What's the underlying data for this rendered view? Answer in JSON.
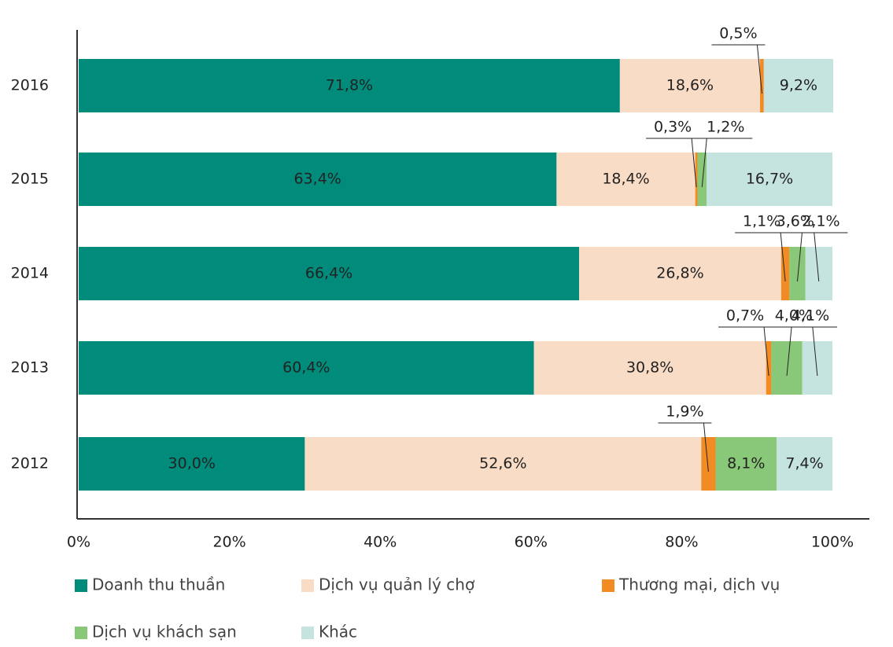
{
  "chart_data": {
    "type": "stacked-bar-horizontal",
    "categories": [
      "2016",
      "2015",
      "2014",
      "2013",
      "2012"
    ],
    "series": [
      {
        "name": "Doanh thu thuần",
        "color": "#008b7b",
        "values": [
          71.8,
          63.4,
          66.4,
          60.4,
          30.0
        ],
        "value_labels": [
          "71,8%",
          "63,4%",
          "66,4%",
          "60,4%",
          "30,0%"
        ]
      },
      {
        "name": "Dịch vụ quản lý chợ",
        "color": "#f9dcc5",
        "values": [
          18.6,
          18.4,
          26.8,
          30.8,
          52.6
        ],
        "value_labels": [
          "18,6%",
          "18,4%",
          "26,8%",
          "30,8%",
          "52,6%"
        ]
      },
      {
        "name": "Thương mại, dịch vụ",
        "color": "#f38b24",
        "values": [
          0.5,
          0.3,
          1.1,
          0.7,
          1.9
        ],
        "value_labels": [
          "0,5%",
          "0,3%",
          "1,1%",
          "0,7%",
          "1,9%"
        ]
      },
      {
        "name": "Dịch vụ khách sạn",
        "color": "#89c878",
        "values": [
          null,
          1.2,
          2.1,
          4.1,
          8.1
        ],
        "value_labels": [
          null,
          "1,2%",
          "2,1%",
          "4,1%",
          "8,1%"
        ]
      },
      {
        "name": "Khác",
        "color": "#c5e3df",
        "values": [
          9.2,
          16.7,
          3.6,
          4.0,
          7.4
        ],
        "value_labels": [
          "9,2%",
          "16,7%",
          "3,6%",
          "4,0%",
          "7,4%"
        ]
      }
    ],
    "xlim": [
      0,
      100
    ],
    "xticks": [
      {
        "value": 0,
        "label": "0%"
      },
      {
        "value": 20,
        "label": "20%"
      },
      {
        "value": 40,
        "label": "40%"
      },
      {
        "value": 60,
        "label": "60%"
      },
      {
        "value": 80,
        "label": "80%"
      },
      {
        "value": 100,
        "label": "100%"
      }
    ]
  }
}
